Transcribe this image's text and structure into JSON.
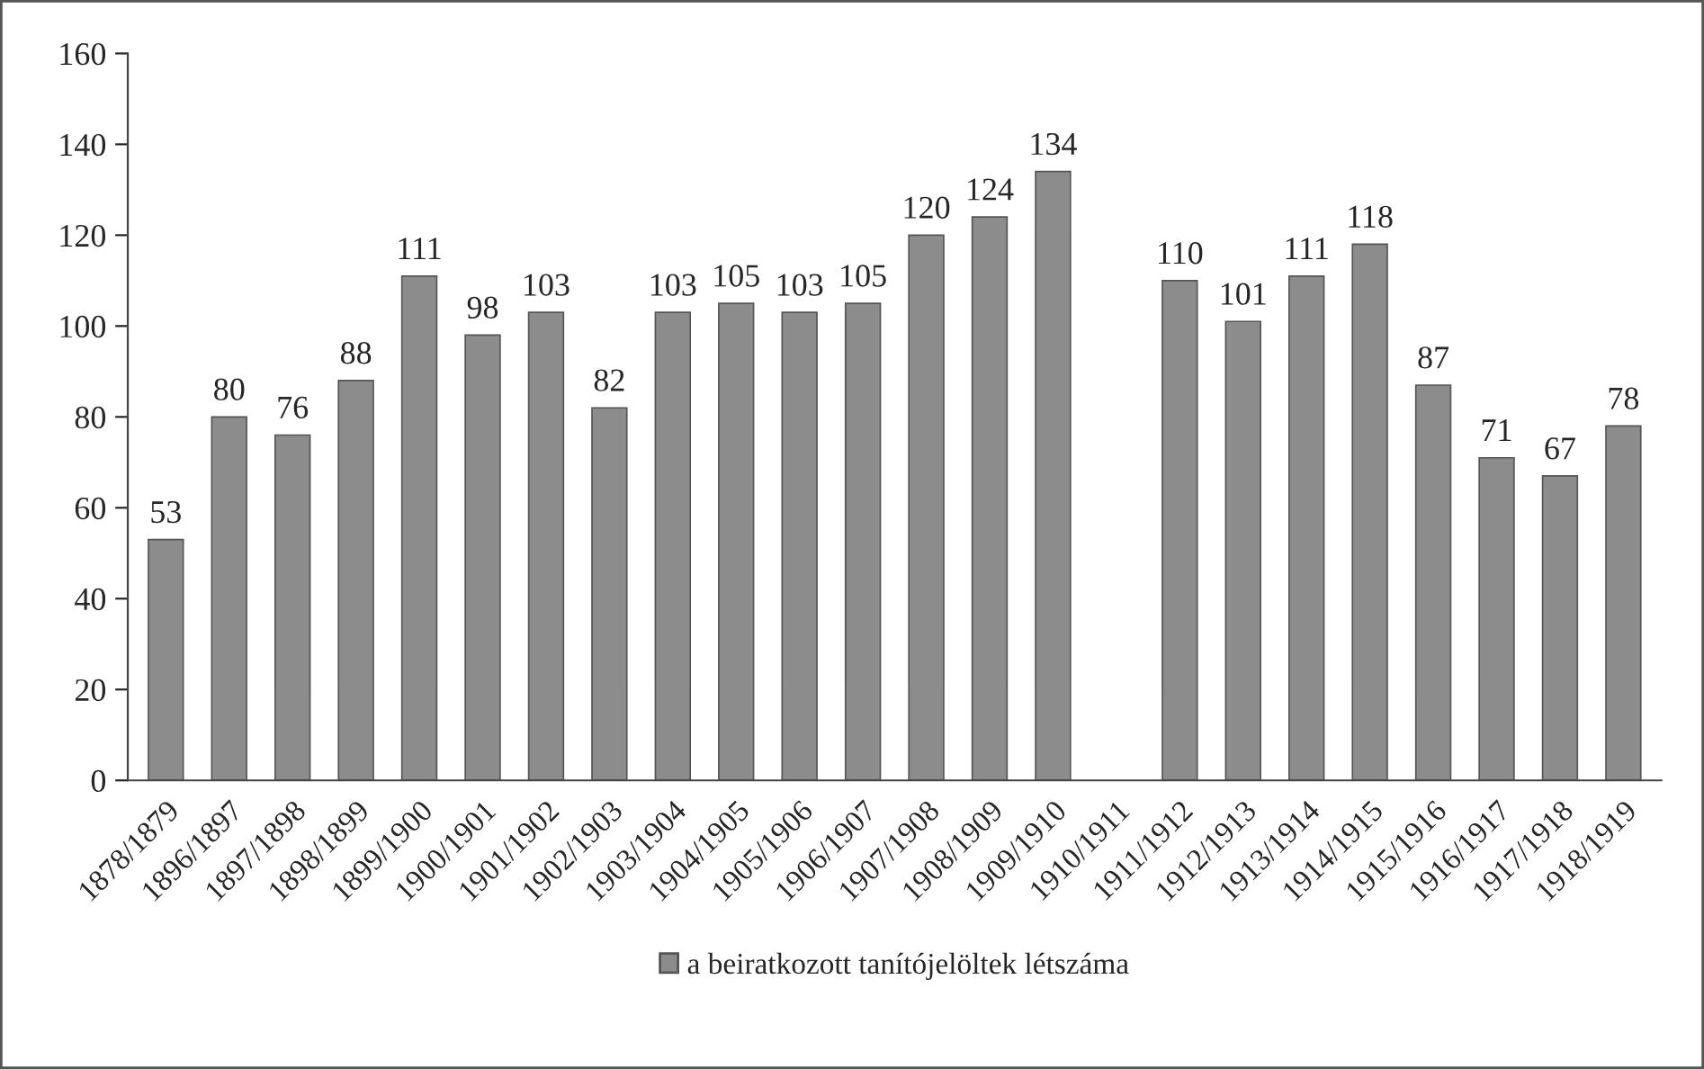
{
  "chart_data": {
    "type": "bar",
    "categories": [
      "1878/1879",
      "1896/1897",
      "1897/1898",
      "1898/1899",
      "1899/1900",
      "1900/1901",
      "1901/1902",
      "1902/1903",
      "1903/1904",
      "1904/1905",
      "1905/1906",
      "1906/1907",
      "1907/1908",
      "1908/1909",
      "1909/1910",
      "1910/1911",
      "1911/1912",
      "1912/1913",
      "1913/1914",
      "1914/1915",
      "1915/1916",
      "1916/1917",
      "1917/1918",
      "1918/1919"
    ],
    "series": [
      {
        "name": "a beiratkozott tanítójelöltek létszáma",
        "color": "#8c8c8c",
        "values": [
          53,
          80,
          76,
          88,
          111,
          98,
          103,
          82,
          103,
          105,
          103,
          105,
          120,
          124,
          134,
          null,
          110,
          101,
          111,
          118,
          87,
          71,
          67,
          78
        ]
      }
    ],
    "ylim": [
      0,
      160
    ],
    "yticks": [
      0,
      20,
      40,
      60,
      80,
      100,
      120,
      140,
      160
    ],
    "data_labels": true,
    "grid": false,
    "legend": "bottom"
  }
}
